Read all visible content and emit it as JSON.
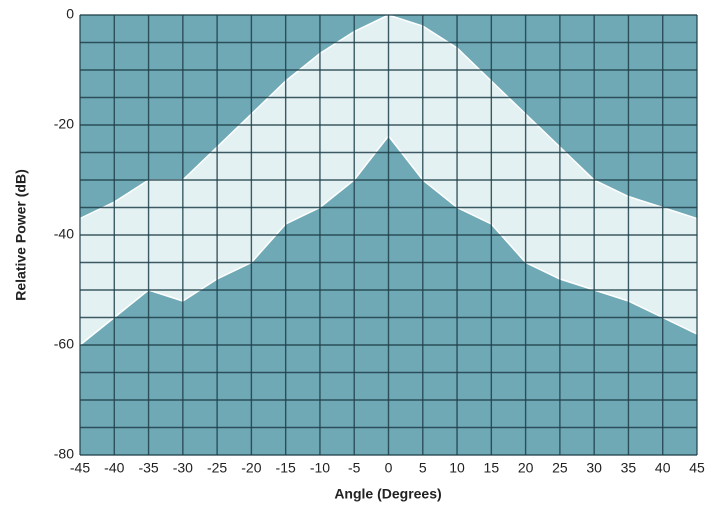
{
  "chart_data": {
    "type": "area_band",
    "xlabel": "Angle (Degrees)",
    "ylabel": "Relative Power (dB)",
    "x": [
      -45,
      -40,
      -35,
      -30,
      -25,
      -20,
      -15,
      -10,
      -5,
      0,
      5,
      10,
      15,
      20,
      25,
      30,
      35,
      40,
      45
    ],
    "upper_values": [
      -37,
      -34,
      -30,
      -30,
      -24,
      -18,
      -12,
      -7,
      -3,
      0,
      -2,
      -6,
      -12,
      -18,
      -24,
      -30,
      -33,
      -35,
      -37
    ],
    "lower_values": [
      -60,
      -55,
      -50,
      -52,
      -48,
      -45,
      -38,
      -35,
      -30,
      -22,
      -30,
      -35,
      -38,
      -45,
      -48,
      -50,
      -52,
      -55,
      -58
    ],
    "xlim": [
      -45,
      45
    ],
    "ylim": [
      -80,
      0
    ],
    "xticks": [
      -45,
      -40,
      -35,
      -30,
      -25,
      -20,
      -15,
      -10,
      -5,
      0,
      5,
      10,
      15,
      20,
      25,
      30,
      35,
      40,
      45
    ],
    "yticks": [
      -80,
      -60,
      -40,
      -20,
      0
    ],
    "ygrid": [
      -80,
      -75,
      -70,
      -65,
      -60,
      -55,
      -50,
      -45,
      -40,
      -35,
      -30,
      -25,
      -20,
      -15,
      -10,
      -5,
      0
    ],
    "grid": true,
    "plot_background": "#6fa9b6",
    "grid_color": "#1f3f4a",
    "fill_color": "#f4fafb"
  }
}
